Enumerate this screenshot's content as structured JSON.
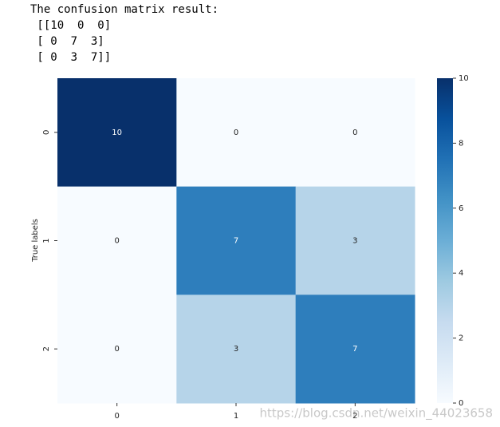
{
  "console": {
    "lines": [
      "The confusion matrix result:",
      " [[10  0  0]",
      " [ 0  7  3]",
      " [ 0  3  7]]"
    ]
  },
  "chart_data": {
    "type": "heatmap",
    "ylabel": "True labels",
    "x_categories": [
      "0",
      "1",
      "2"
    ],
    "y_categories": [
      "0",
      "1",
      "2"
    ],
    "values": [
      [
        10,
        0,
        0
      ],
      [
        0,
        7,
        3
      ],
      [
        0,
        3,
        7
      ]
    ],
    "colormap": "Blues",
    "clim": [
      0,
      10
    ],
    "cticks": [
      0,
      2,
      4,
      6,
      8,
      10
    ]
  },
  "watermark": "https://blog.csdn.net/weixin_44023658"
}
